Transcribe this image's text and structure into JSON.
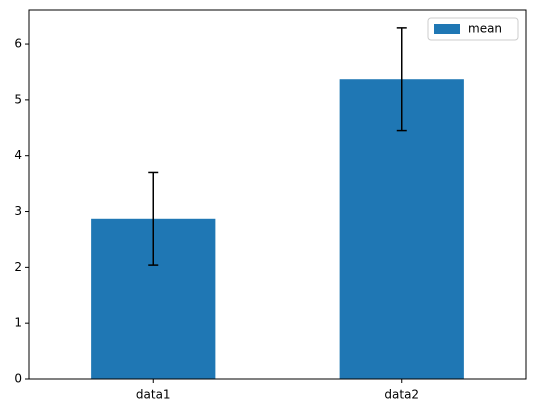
{
  "chart_data": {
    "type": "bar",
    "categories": [
      "data1",
      "data2"
    ],
    "series": [
      {
        "name": "mean",
        "color": "#1f77b4",
        "values": [
          2.87,
          5.37
        ],
        "errors": [
          0.83,
          0.92
        ]
      }
    ],
    "ylim": [
      0,
      6.61
    ],
    "yticks": [
      0,
      1,
      2,
      3,
      4,
      5,
      6
    ],
    "legend": "upper right"
  }
}
